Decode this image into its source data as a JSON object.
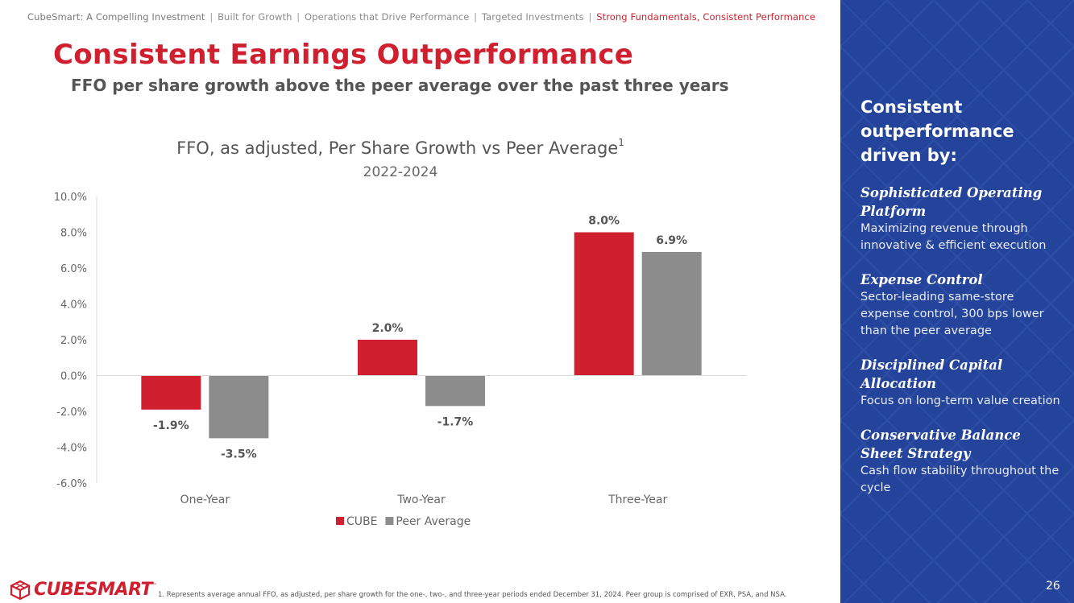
{
  "breadcrumb": {
    "items": [
      "CubeSmart: A Compelling Investment",
      "Built for Growth",
      "Operations that Drive Performance",
      "Targeted Investments"
    ],
    "active": "Strong Fundamentals, Consistent Performance",
    "separator": "|"
  },
  "header": {
    "title": "Consistent Earnings Outperformance",
    "subtitle": "FFO per share growth above the peer average over the past three years"
  },
  "chart_data": {
    "type": "bar",
    "title": "FFO, as adjusted, Per Share Growth vs Peer Average",
    "title_superscript": "1",
    "subtitle": "2022-2024",
    "categories": [
      "One-Year",
      "Two-Year",
      "Three-Year"
    ],
    "series": [
      {
        "name": "CUBE",
        "values": [
          -1.9,
          2.0,
          8.0
        ],
        "labels": [
          "-1.9%",
          "2.0%",
          "8.0%"
        ],
        "color": "#d0202f"
      },
      {
        "name": "Peer Average",
        "values": [
          -3.5,
          -1.7,
          6.9
        ],
        "labels": [
          "-3.5%",
          "-1.7%",
          "6.9%"
        ],
        "color": "#8c8c8c"
      }
    ],
    "ylim": [
      -6.0,
      10.0
    ],
    "yticks": [
      -6.0,
      -4.0,
      -2.0,
      0.0,
      2.0,
      4.0,
      6.0,
      8.0,
      10.0
    ],
    "ytick_labels": [
      "-6.0%",
      "-4.0%",
      "-2.0%",
      "0.0%",
      "2.0%",
      "4.0%",
      "6.0%",
      "8.0%",
      "10.0%"
    ],
    "xlabel": "",
    "ylabel": "",
    "grid": false,
    "legend": "bottom-center"
  },
  "sidebar": {
    "heading": "Consistent outperformance driven by:",
    "drivers": [
      {
        "title": "Sophisticated Operating Platform",
        "desc": "Maximizing revenue through innovative & efficient execution"
      },
      {
        "title": "Expense Control",
        "desc": "Sector-leading same-store expense control, 300 bps lower than the peer average"
      },
      {
        "title": "Disciplined Capital Allocation",
        "desc": "Focus on long-term value creation"
      },
      {
        "title": "Conservative Balance Sheet Strategy",
        "desc": "Cash flow stability throughout the cycle"
      }
    ]
  },
  "footer": {
    "logo_text": "CUBESMART",
    "logo_tm": "™",
    "footnote": "1.    Represents average annual FFO, as adjusted, per share growth for the one-, two-, and three-year periods ended December 31, 2024. Peer group is comprised of EXR, PSA, and NSA.",
    "page_number": "26"
  },
  "colors": {
    "brand_red": "#d0202f",
    "peer_gray": "#8c8c8c",
    "sidebar_blue": "#24439a"
  }
}
